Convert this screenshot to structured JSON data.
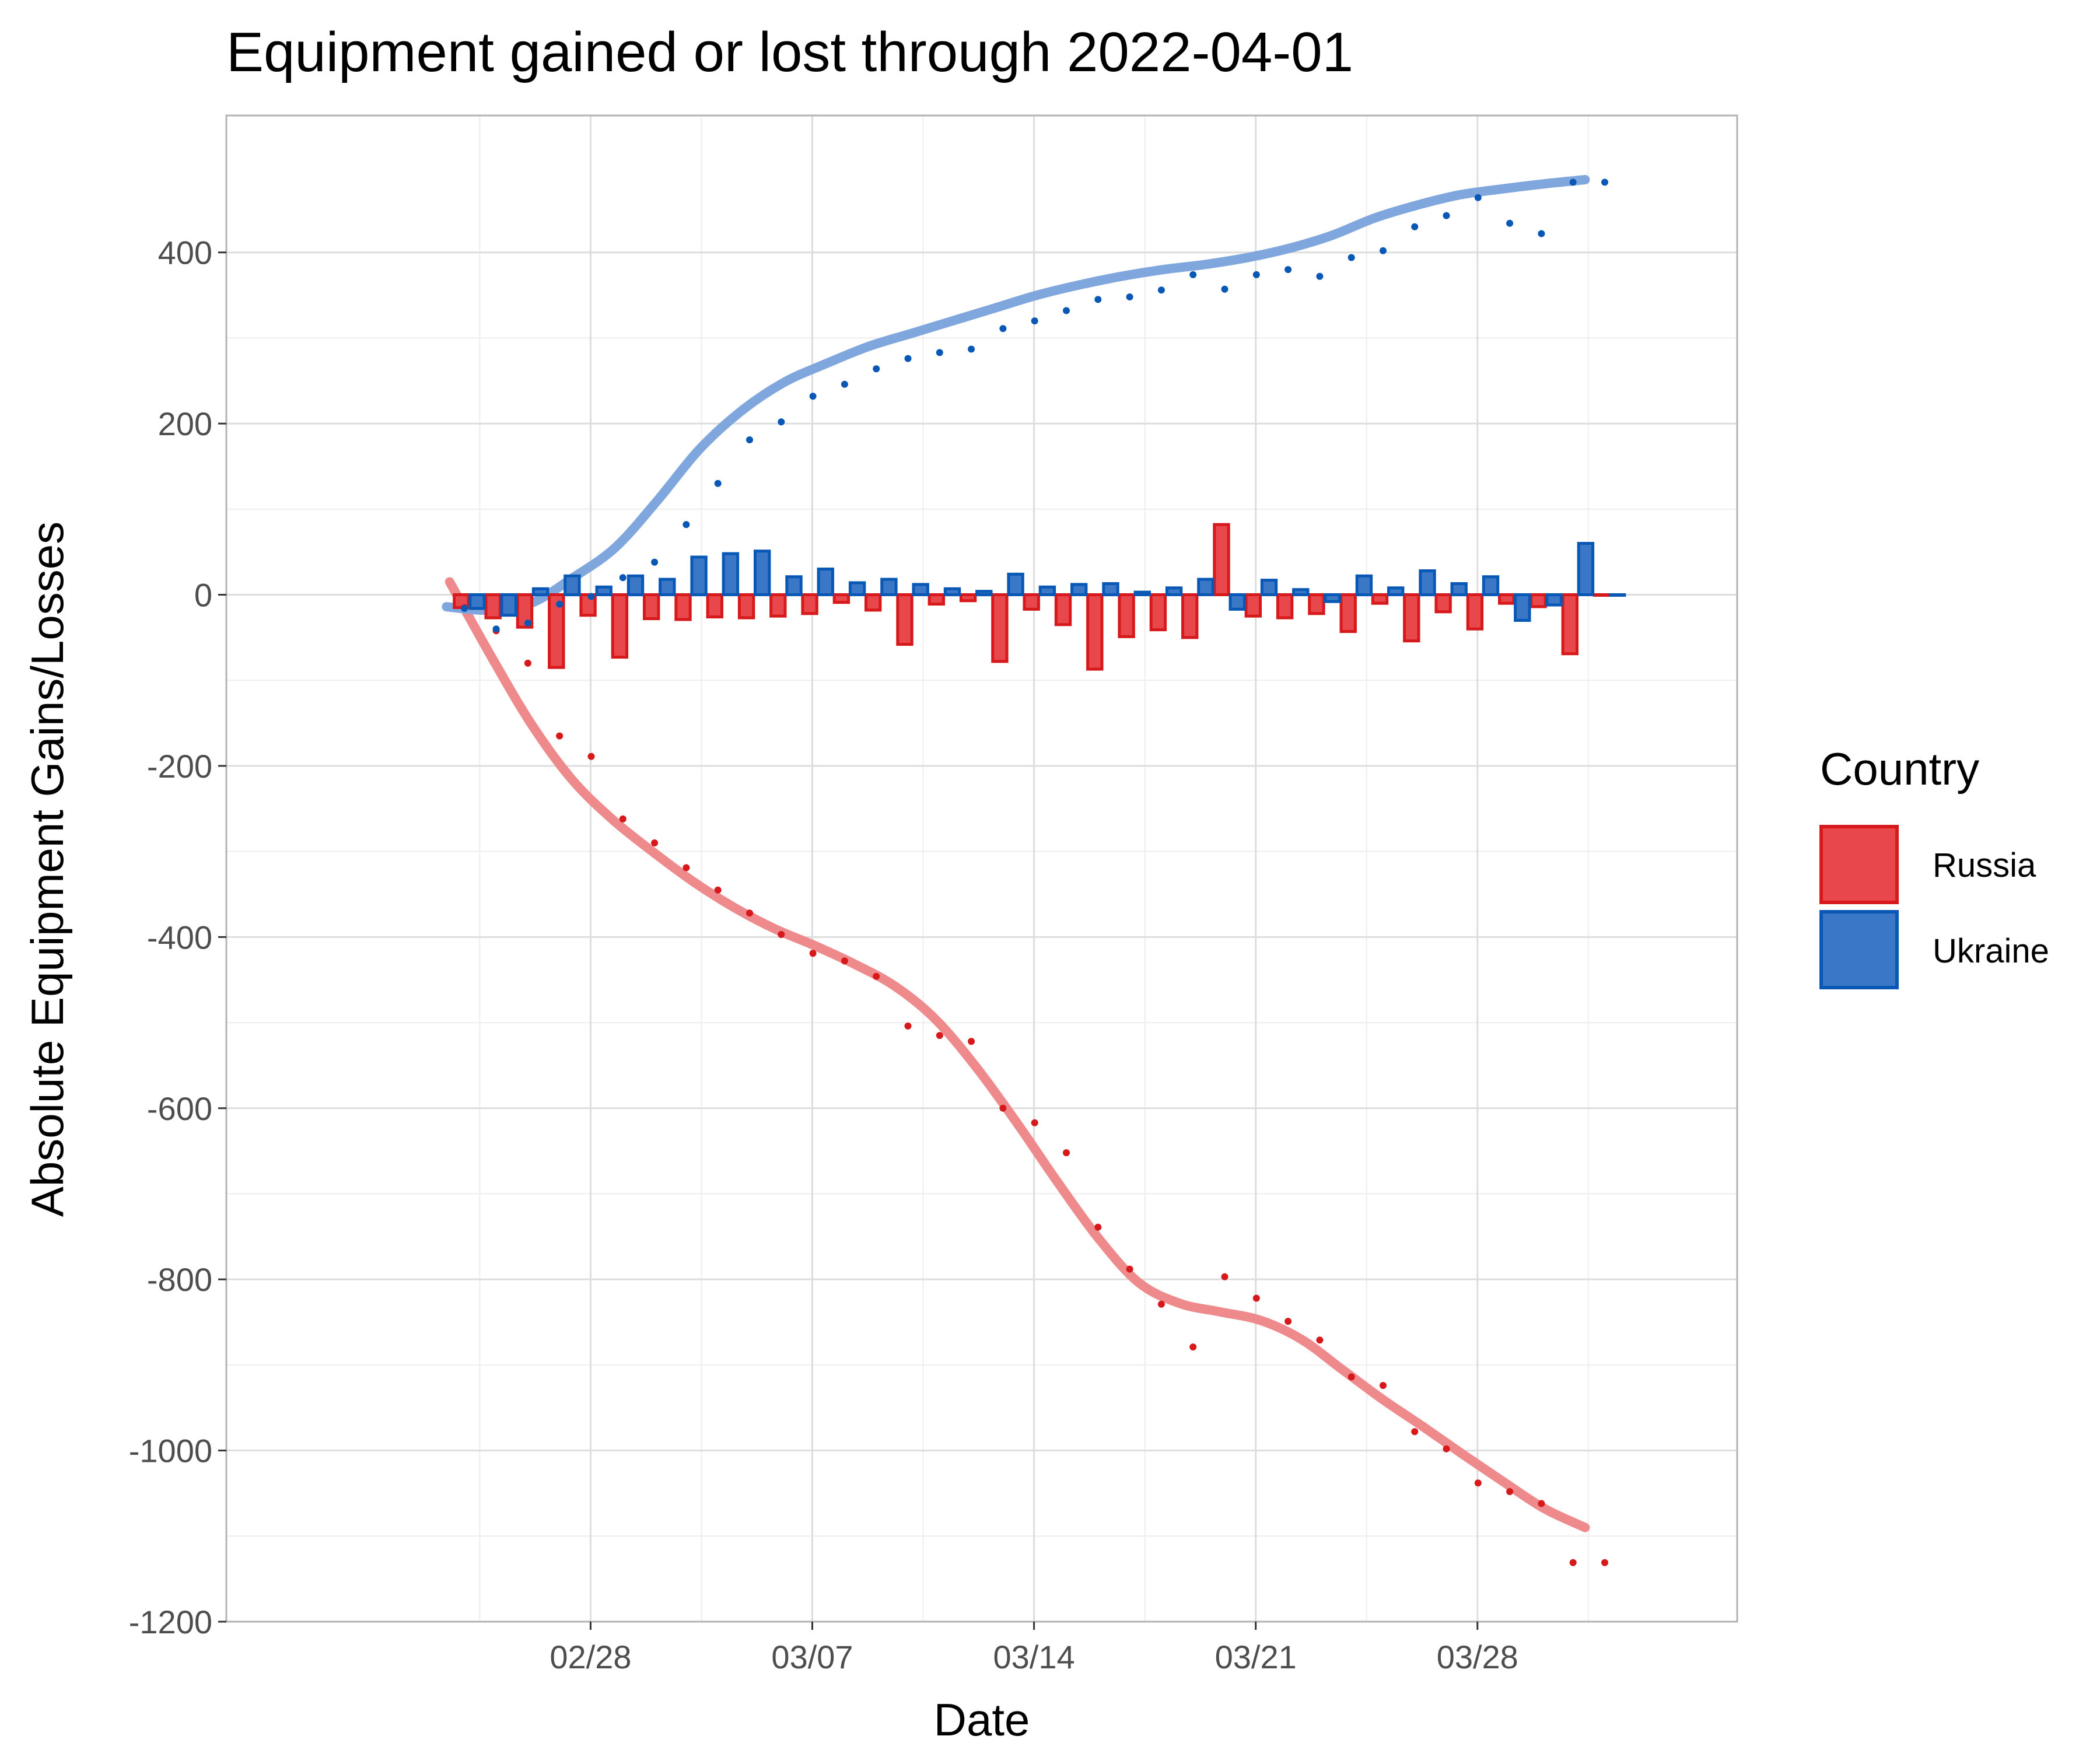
{
  "chart_data": {
    "type": "bar",
    "title": "Equipment gained or lost through 2022-04-01",
    "xlabel": "Date",
    "ylabel": "Absolute Equipment Gains/Losses",
    "ylim": [
      -1200,
      560
    ],
    "y_ticks": [
      400,
      200,
      0,
      -200,
      -400,
      -600,
      -800,
      -1000,
      -1200
    ],
    "y_tick_labels": [
      "400",
      "200",
      "0",
      "-200",
      "-400",
      "-600",
      "-800",
      "-1000",
      "-1200"
    ],
    "x_start_date": "2022-02-24",
    "x_domain_days": [
      -7.5,
      40.2
    ],
    "x_ticks": [
      "2022-02-28",
      "2022-03-07",
      "2022-03-14",
      "2022-03-21",
      "2022-03-28"
    ],
    "x_tick_labels": [
      "02/28",
      "03/07",
      "03/14",
      "03/21",
      "03/28"
    ],
    "grid": true,
    "legend": {
      "title": "Country",
      "position": "right",
      "entries": [
        "Russia",
        "Ukraine"
      ]
    },
    "colors": {
      "russia_fill": "#e8474b",
      "russia_stroke": "#d7191c",
      "russia_line": "#ef8a8c",
      "ukraine_fill": "#3a78c7",
      "ukraine_stroke": "#0a58b6",
      "ukraine_line": "#7fa7dd",
      "grid_major": "#dddddd",
      "grid_minor": "#eeeeee",
      "panel_border": "#b3b3b3"
    },
    "series": [
      {
        "name": "Russia",
        "dates": [
          "2022-02-24",
          "2022-02-25",
          "2022-02-26",
          "2022-02-27",
          "2022-02-28",
          "2022-03-01",
          "2022-03-02",
          "2022-03-03",
          "2022-03-04",
          "2022-03-05",
          "2022-03-06",
          "2022-03-07",
          "2022-03-08",
          "2022-03-09",
          "2022-03-10",
          "2022-03-11",
          "2022-03-12",
          "2022-03-13",
          "2022-03-14",
          "2022-03-15",
          "2022-03-16",
          "2022-03-17",
          "2022-03-18",
          "2022-03-19",
          "2022-03-20",
          "2022-03-21",
          "2022-03-22",
          "2022-03-23",
          "2022-03-24",
          "2022-03-25",
          "2022-03-26",
          "2022-03-27",
          "2022-03-28",
          "2022-03-29",
          "2022-03-30",
          "2022-03-31",
          "2022-04-01"
        ],
        "daily_change": [
          -15,
          -27,
          -38,
          -85,
          -24,
          -73,
          -28,
          -29,
          -26,
          -27,
          -25,
          -22,
          -9,
          -18,
          -58,
          -11,
          -7,
          -78,
          -17,
          -35,
          -87,
          -49,
          -41,
          -50,
          82,
          -25,
          -27,
          -22,
          -43,
          -10,
          -54,
          -20,
          -40,
          -10,
          -14,
          -69,
          0
        ],
        "cumulative": [
          -15,
          -42,
          -80,
          -165,
          -189,
          -262,
          -290,
          -319,
          -345,
          -372,
          -397,
          -419,
          -428,
          -446,
          -504,
          -515,
          -522,
          -600,
          -617,
          -652,
          -739,
          -788,
          -829,
          -879,
          -797,
          -822,
          -849,
          -871,
          -914,
          -924,
          -978,
          -998,
          -1038,
          -1048,
          -1062,
          -1131,
          -1131
        ],
        "smoothed": [
          15,
          -70,
          -150,
          -215,
          -262,
          -300,
          -335,
          -365,
          -390,
          -410,
          -432,
          -458,
          -497,
          -553,
          -618,
          -687,
          -752,
          -804,
          -828,
          -838,
          -848,
          -870,
          -905,
          -940,
          -972,
          -1005,
          -1037,
          -1068,
          -1090
        ]
      },
      {
        "name": "Ukraine",
        "dates": [
          "2022-02-24",
          "2022-02-25",
          "2022-02-26",
          "2022-02-27",
          "2022-02-28",
          "2022-03-01",
          "2022-03-02",
          "2022-03-03",
          "2022-03-04",
          "2022-03-05",
          "2022-03-06",
          "2022-03-07",
          "2022-03-08",
          "2022-03-09",
          "2022-03-10",
          "2022-03-11",
          "2022-03-12",
          "2022-03-13",
          "2022-03-14",
          "2022-03-15",
          "2022-03-16",
          "2022-03-17",
          "2022-03-18",
          "2022-03-19",
          "2022-03-20",
          "2022-03-21",
          "2022-03-22",
          "2022-03-23",
          "2022-03-24",
          "2022-03-25",
          "2022-03-26",
          "2022-03-27",
          "2022-03-28",
          "2022-03-29",
          "2022-03-30",
          "2022-03-31",
          "2022-04-01"
        ],
        "daily_change": [
          -16,
          -24,
          7,
          22,
          9,
          22,
          18,
          44,
          48,
          51,
          21,
          30,
          14,
          18,
          12,
          7,
          4,
          24,
          9,
          12,
          13,
          3,
          8,
          18,
          -17,
          17,
          6,
          -8,
          22,
          8,
          28,
          13,
          21,
          -30,
          -12,
          60,
          0
        ],
        "cumulative": [
          -16,
          -40,
          -33,
          -11,
          -2,
          20,
          38,
          82,
          130,
          181,
          202,
          232,
          246,
          264,
          276,
          283,
          287,
          311,
          320,
          332,
          345,
          348,
          356,
          374,
          357,
          374,
          380,
          372,
          394,
          402,
          430,
          443,
          464,
          434,
          422,
          482,
          482
        ],
        "smoothed": [
          -14,
          -18,
          -10,
          20,
          55,
          110,
          170,
          215,
          248,
          270,
          290,
          305,
          320,
          335,
          350,
          362,
          372,
          380,
          386,
          394,
          405,
          420,
          440,
          455,
          467,
          474,
          480,
          485
        ]
      }
    ]
  }
}
